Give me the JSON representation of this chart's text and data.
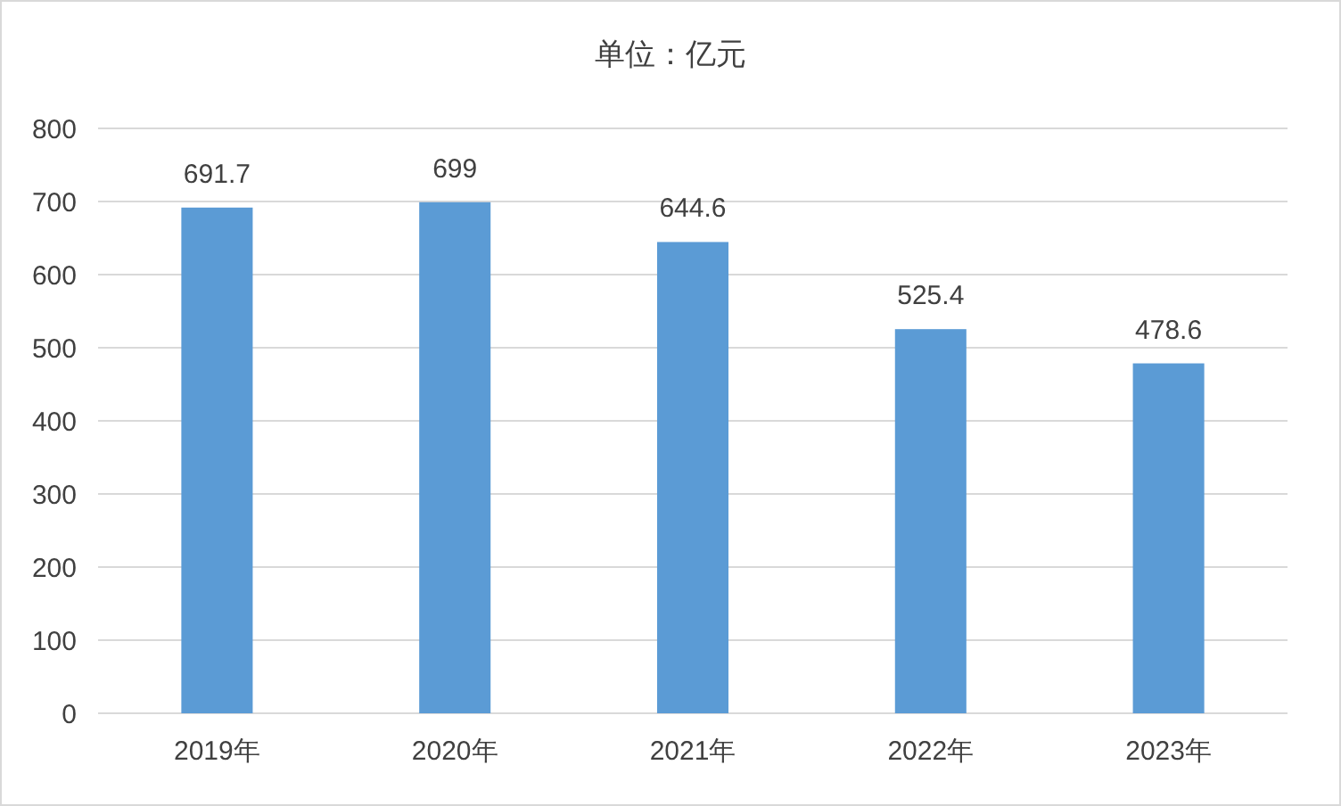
{
  "chart_data": {
    "type": "bar",
    "title": "单位：亿元",
    "categories": [
      "2019年",
      "2020年",
      "2021年",
      "2022年",
      "2023年"
    ],
    "values": [
      691.7,
      699,
      644.6,
      525.4,
      478.6
    ],
    "color": "#5b9bd5",
    "ylim": [
      0,
      800
    ],
    "yticks": [
      0,
      100,
      200,
      300,
      400,
      500,
      600,
      700,
      800
    ],
    "grid": "y",
    "data_labels": true
  }
}
